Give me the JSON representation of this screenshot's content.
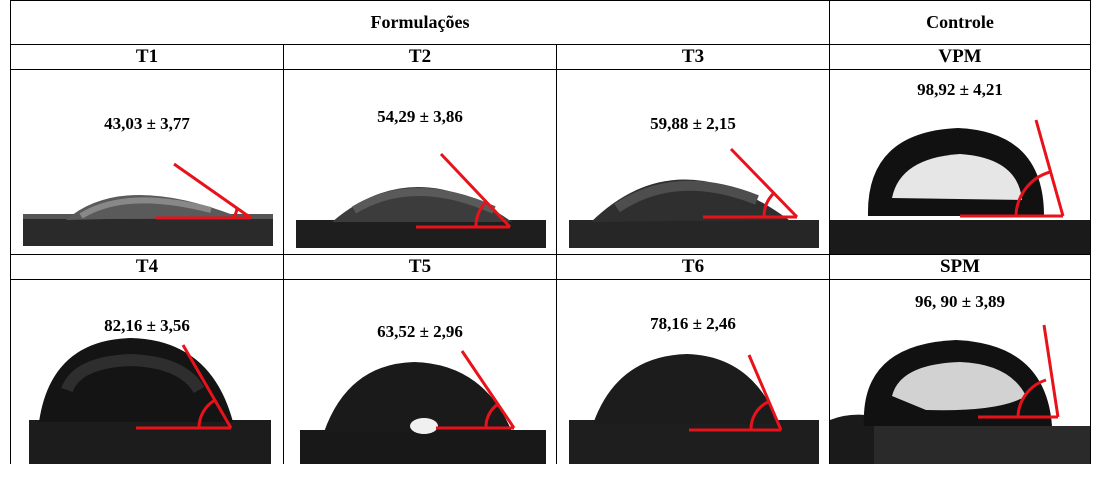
{
  "header": {
    "formulations": "Formulações",
    "control": "Controle"
  },
  "row1": [
    {
      "label": "T1",
      "value": "43,03 ± 3,77"
    },
    {
      "label": "T2",
      "value": "54,29 ± 3,86"
    },
    {
      "label": "T3",
      "value": "59,88 ± 2,15"
    },
    {
      "label": "VPM",
      "value": "98,92 ± 4,21"
    }
  ],
  "row2": [
    {
      "label": "T4",
      "value": "82,16 ± 3,56"
    },
    {
      "label": "T5",
      "value": "63,52 ± 2,96"
    },
    {
      "label": "T6",
      "value": "78,16 ± 2,46"
    },
    {
      "label": "SPM",
      "value": "96, 90 ± 3,89"
    }
  ],
  "colors": {
    "angle_line": "#e8121b",
    "border": "#000000"
  }
}
